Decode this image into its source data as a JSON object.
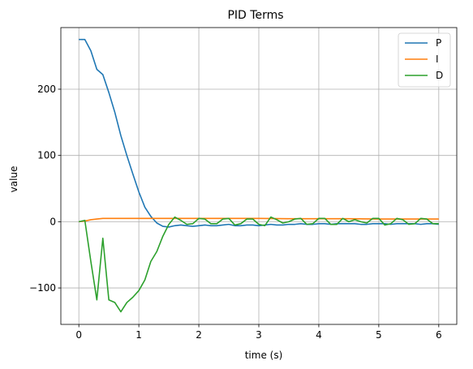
{
  "chart_data": {
    "type": "line",
    "title": "PID Terms",
    "xlabel": "time (s)",
    "ylabel": "value",
    "xlim": [
      -0.3,
      6.3
    ],
    "ylim": [
      -155,
      293
    ],
    "xticks": [
      0,
      1,
      2,
      3,
      4,
      5,
      6
    ],
    "yticks": [
      -100,
      0,
      100,
      200
    ],
    "ytick_labels": [
      "−100",
      "0",
      "100",
      "200"
    ],
    "grid": true,
    "legend_position": "top-right",
    "series": [
      {
        "name": "P",
        "color": "#1f77b4",
        "x": [
          0,
          0.1,
          0.2,
          0.3,
          0.4,
          0.5,
          0.6,
          0.7,
          0.8,
          0.9,
          1.0,
          1.1,
          1.2,
          1.3,
          1.4,
          1.5,
          1.6,
          1.7,
          1.8,
          1.9,
          2.0,
          2.1,
          2.2,
          2.3,
          2.4,
          2.5,
          2.6,
          2.7,
          2.8,
          2.9,
          3.0,
          3.1,
          3.2,
          3.3,
          3.4,
          3.5,
          3.6,
          3.7,
          3.8,
          3.9,
          4.0,
          4.1,
          4.2,
          4.3,
          4.4,
          4.5,
          4.6,
          4.7,
          4.8,
          4.9,
          5.0,
          5.1,
          5.2,
          5.3,
          5.4,
          5.5,
          5.6,
          5.7,
          5.8,
          5.9,
          6.0
        ],
        "y": [
          275,
          275,
          258,
          230,
          222,
          195,
          165,
          130,
          100,
          72,
          45,
          22,
          8,
          -2,
          -7,
          -8,
          -6,
          -5,
          -6,
          -7,
          -6,
          -5,
          -6,
          -6,
          -5,
          -4,
          -6,
          -6,
          -5,
          -5,
          -6,
          -5,
          -4,
          -5,
          -5,
          -4,
          -4,
          -3,
          -4,
          -4,
          -3,
          -3,
          -4,
          -3,
          -3,
          -3,
          -3,
          -4,
          -4,
          -3,
          -3,
          -3,
          -4,
          -3,
          -3,
          -3,
          -3,
          -4,
          -3,
          -3,
          -4
        ]
      },
      {
        "name": "I",
        "color": "#ff7f0e",
        "x": [
          0,
          0.1,
          0.2,
          0.3,
          0.4,
          0.5,
          0.6,
          0.8,
          1.0,
          1.5,
          2.0,
          2.5,
          3.0,
          3.5,
          4.0,
          4.5,
          5.0,
          5.5,
          6.0
        ],
        "y": [
          0,
          1,
          3,
          4,
          5,
          5,
          5,
          5,
          5,
          5,
          5,
          5,
          5,
          4.5,
          4.5,
          4.5,
          4,
          4,
          4
        ]
      },
      {
        "name": "D",
        "color": "#2ca02c",
        "x": [
          0,
          0.1,
          0.2,
          0.3,
          0.4,
          0.5,
          0.6,
          0.7,
          0.8,
          0.9,
          1.0,
          1.1,
          1.2,
          1.3,
          1.4,
          1.5,
          1.6,
          1.7,
          1.8,
          1.9,
          2.0,
          2.1,
          2.2,
          2.3,
          2.4,
          2.5,
          2.6,
          2.7,
          2.8,
          2.9,
          3.0,
          3.1,
          3.2,
          3.3,
          3.4,
          3.5,
          3.6,
          3.7,
          3.8,
          3.9,
          4.0,
          4.1,
          4.2,
          4.3,
          4.4,
          4.5,
          4.6,
          4.7,
          4.8,
          4.9,
          5.0,
          5.1,
          5.2,
          5.3,
          5.4,
          5.5,
          5.6,
          5.7,
          5.8,
          5.9,
          6.0
        ],
        "y": [
          0,
          2,
          -60,
          -118,
          -25,
          -118,
          -122,
          -136,
          -122,
          -114,
          -104,
          -88,
          -60,
          -45,
          -22,
          -4,
          7,
          2,
          -4,
          -3,
          5,
          4,
          -3,
          -3,
          4,
          5,
          -5,
          -3,
          4,
          4,
          -4,
          -6,
          7,
          3,
          -2,
          0,
          4,
          5,
          -4,
          -3,
          5,
          5,
          -4,
          -4,
          5,
          0,
          3,
          0,
          -2,
          5,
          5,
          -5,
          -3,
          5,
          3,
          -4,
          -3,
          5,
          4,
          -3,
          -3
        ]
      }
    ]
  }
}
